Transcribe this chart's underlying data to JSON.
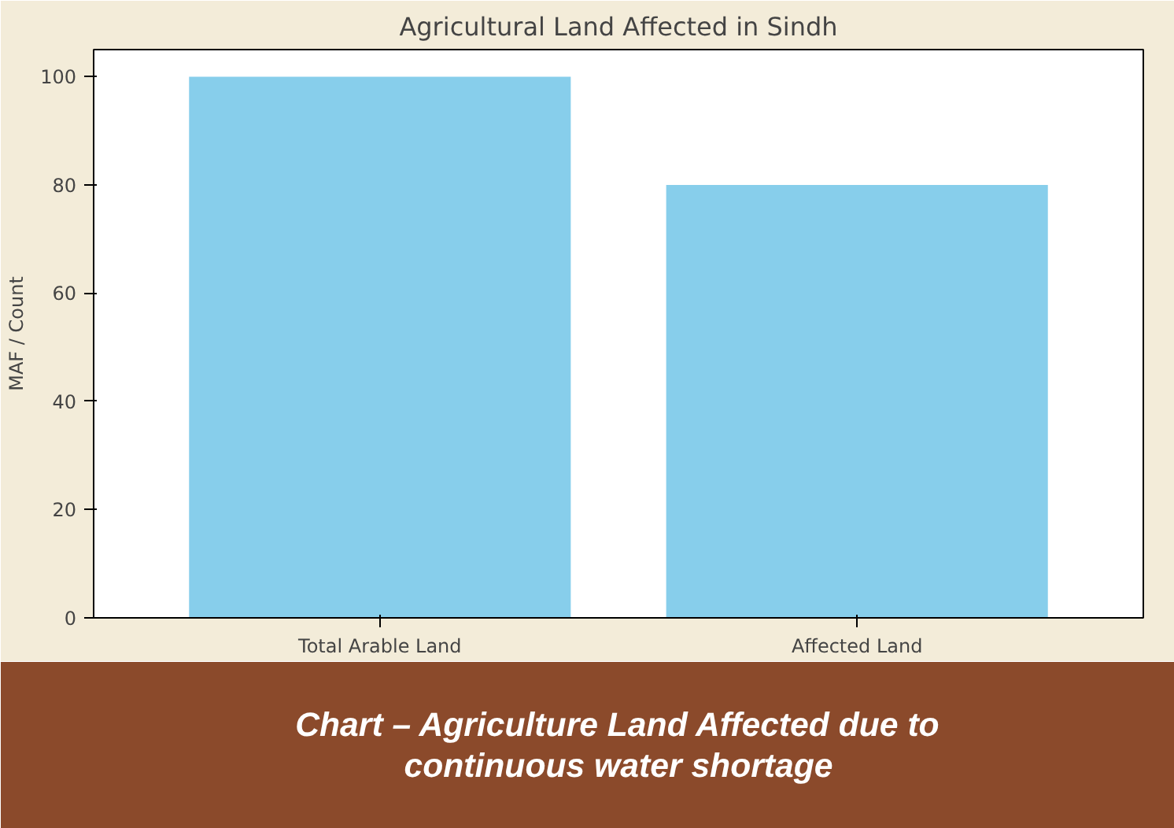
{
  "chart_data": {
    "type": "bar",
    "title": "Agricultural Land Affected in Sindh",
    "ylabel": "MAF / Count",
    "categories": [
      "Total Arable Land",
      "Affected Land"
    ],
    "values": [
      100,
      80
    ],
    "color": "#87ceeb",
    "ylim": [
      0,
      105
    ],
    "yticks": [
      0,
      20,
      40,
      60,
      80,
      100
    ],
    "grid": false,
    "annotations": [
      "Chart – Agriculture Land Affected due to continuous water shortage"
    ]
  }
}
